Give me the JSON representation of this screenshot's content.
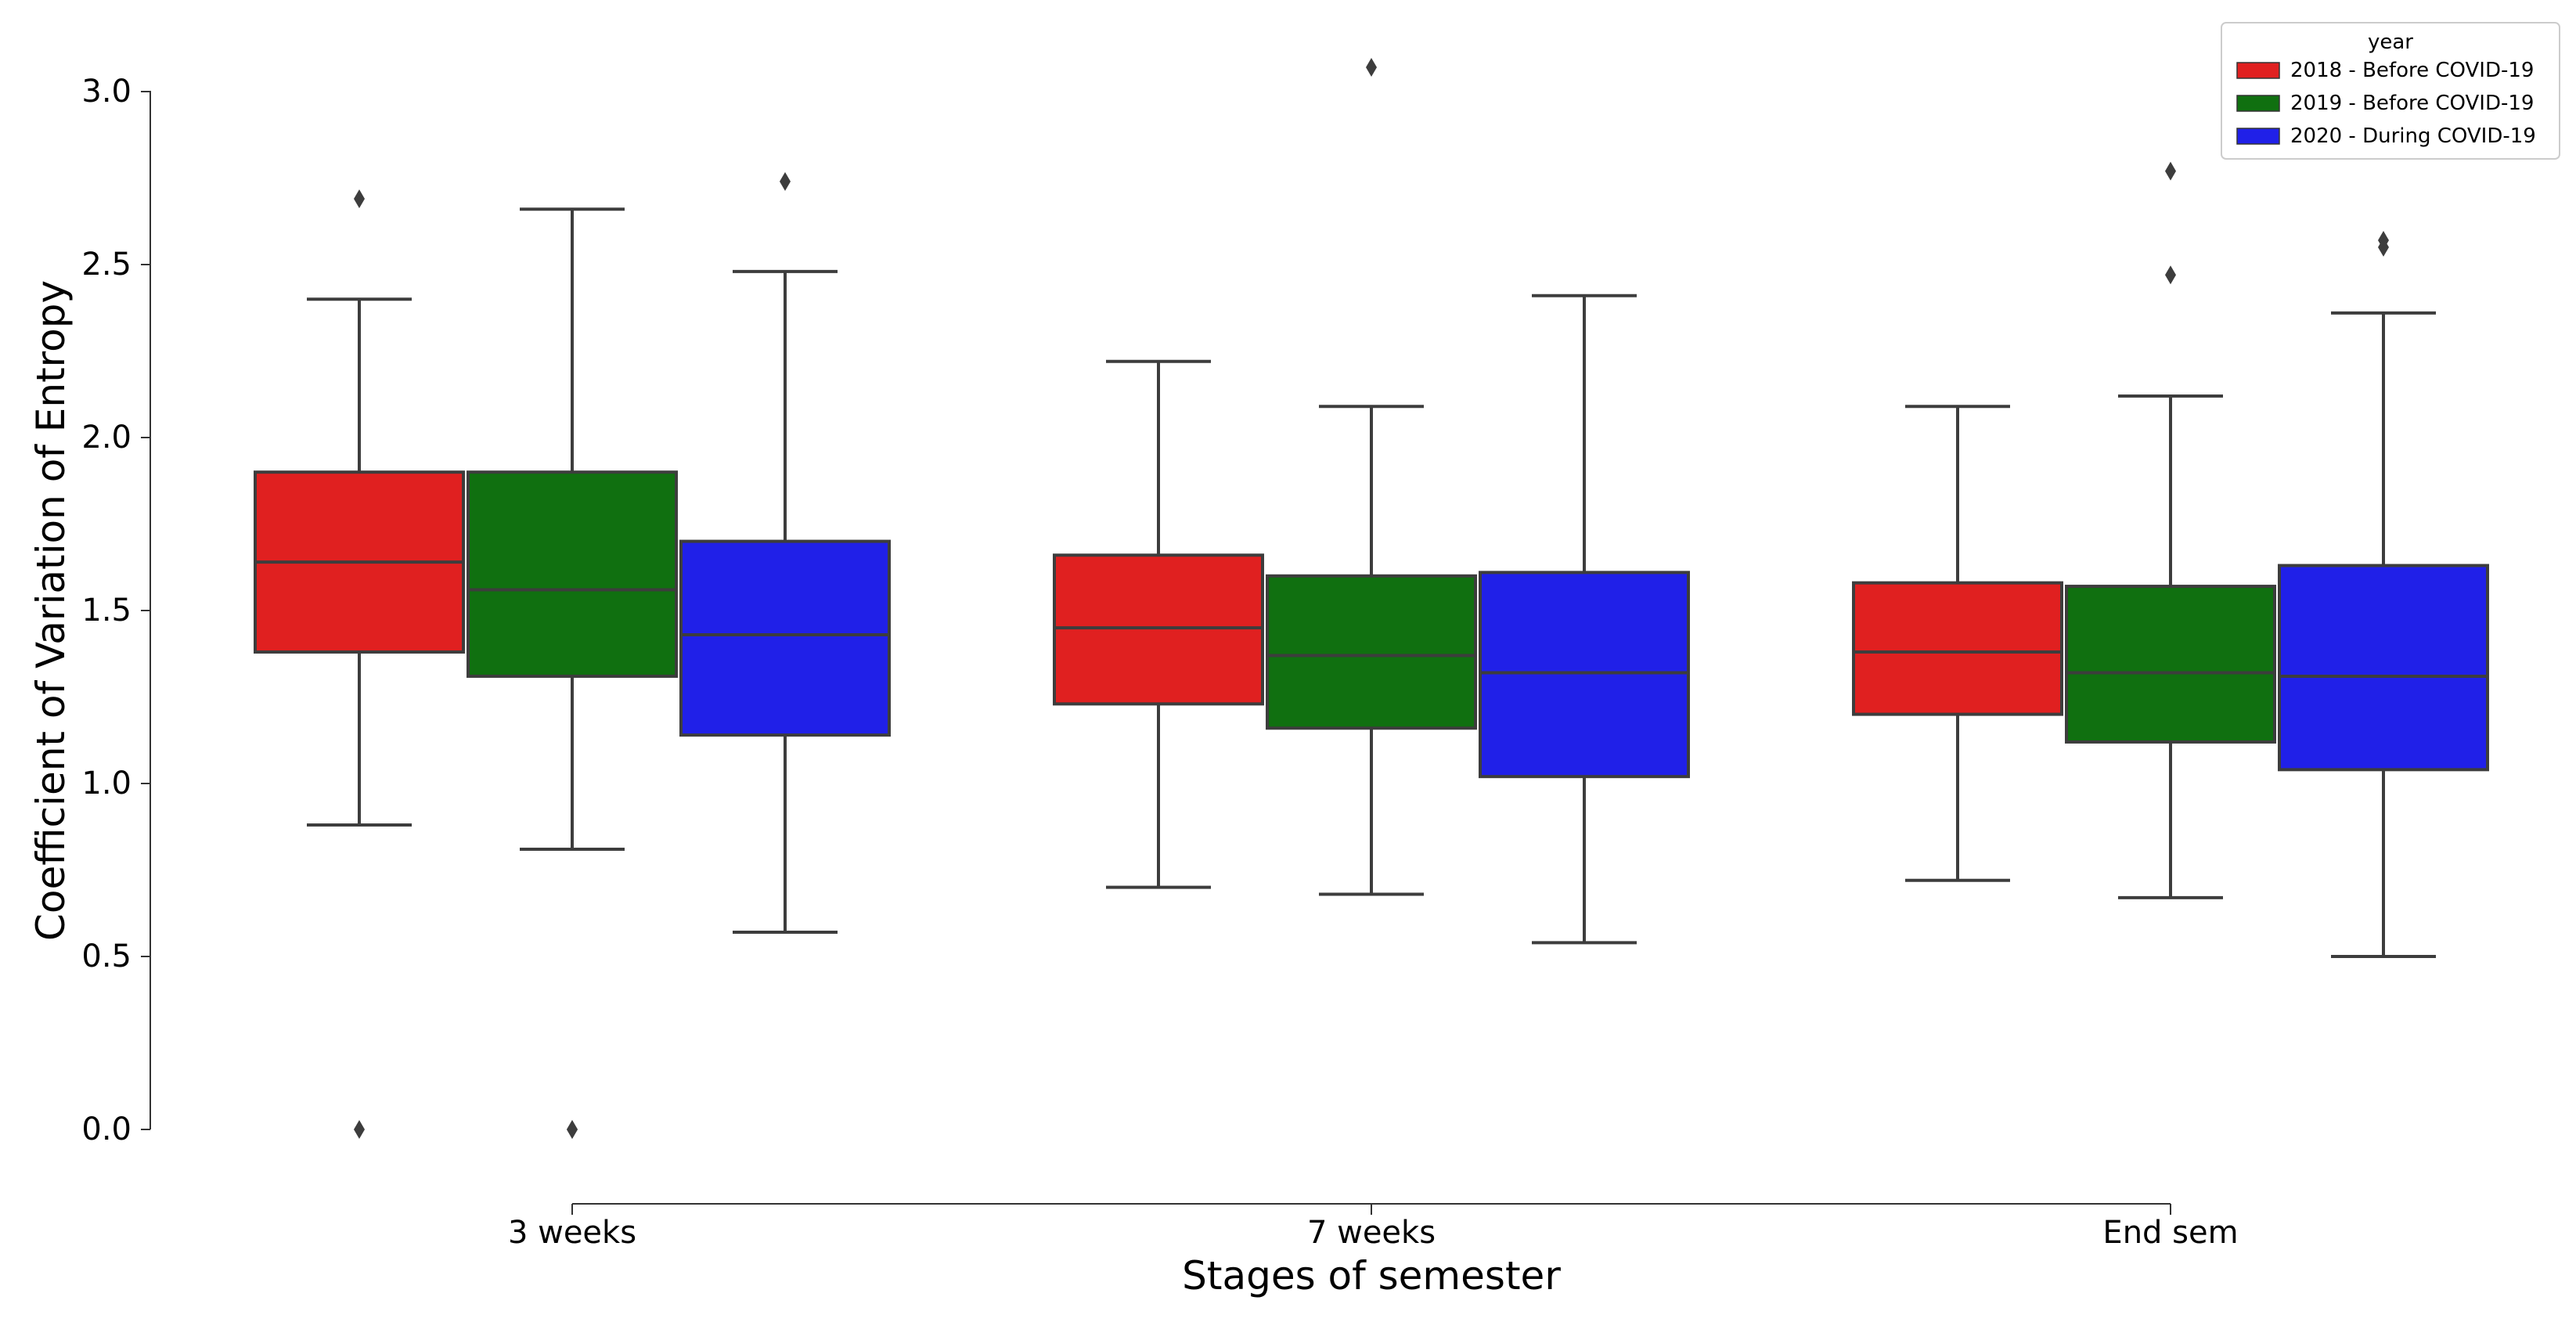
{
  "chart_data": {
    "type": "box",
    "xlabel": "Stages of semester",
    "ylabel": "Coefficient of Variation of Entropy",
    "ylim": [
      0,
      3.0
    ],
    "yticks": [
      0.0,
      0.5,
      1.0,
      1.5,
      2.0,
      2.5,
      3.0
    ],
    "ytick_labels": [
      "0.0",
      "0.5",
      "1.0",
      "1.5",
      "2.0",
      "2.5",
      "3.0"
    ],
    "categories": [
      "3 weeks",
      "7 weeks",
      "End sem"
    ],
    "grid": false,
    "legend": {
      "title": "year",
      "position": "top-right",
      "entries": [
        "2018 - Before COVID-19",
        "2019 - Before COVID-19",
        "2020 - During COVID-19"
      ]
    },
    "colors": [
      "#e02020",
      "#107010",
      "#2020e8"
    ],
    "series": [
      {
        "name": "2018 - Before COVID-19",
        "boxes": [
          {
            "whislo": 0.88,
            "q1": 1.38,
            "med": 1.64,
            "q3": 1.9,
            "whishi": 2.4,
            "fliers": [
              2.69,
              0.0
            ]
          },
          {
            "whislo": 0.7,
            "q1": 1.23,
            "med": 1.45,
            "q3": 1.66,
            "whishi": 2.22,
            "fliers": []
          },
          {
            "whislo": 0.72,
            "q1": 1.2,
            "med": 1.38,
            "q3": 1.58,
            "whishi": 2.09,
            "fliers": []
          }
        ]
      },
      {
        "name": "2019 - Before COVID-19",
        "boxes": [
          {
            "whislo": 0.81,
            "q1": 1.31,
            "med": 1.56,
            "q3": 1.9,
            "whishi": 2.66,
            "fliers": [
              0.0,
              0.0
            ]
          },
          {
            "whislo": 0.68,
            "q1": 1.16,
            "med": 1.37,
            "q3": 1.6,
            "whishi": 2.09,
            "fliers": [
              3.07
            ]
          },
          {
            "whislo": 0.67,
            "q1": 1.12,
            "med": 1.32,
            "q3": 1.57,
            "whishi": 2.12,
            "fliers": [
              2.77,
              2.47
            ]
          }
        ]
      },
      {
        "name": "2020 - During COVID-19",
        "boxes": [
          {
            "whislo": 0.57,
            "q1": 1.14,
            "med": 1.43,
            "q3": 1.7,
            "whishi": 2.48,
            "fliers": [
              2.74
            ]
          },
          {
            "whislo": 0.54,
            "q1": 1.02,
            "med": 1.32,
            "q3": 1.61,
            "whishi": 2.41,
            "fliers": []
          },
          {
            "whislo": 0.5,
            "q1": 1.04,
            "med": 1.31,
            "q3": 1.63,
            "whishi": 2.36,
            "fliers": [
              2.57,
              2.55
            ]
          }
        ]
      }
    ]
  }
}
